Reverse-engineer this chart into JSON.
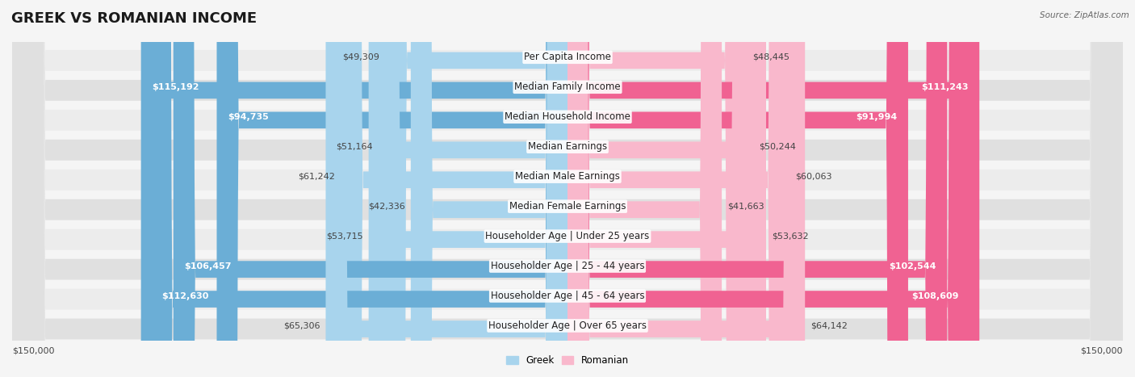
{
  "title": "GREEK VS ROMANIAN INCOME",
  "source": "Source: ZipAtlas.com",
  "categories": [
    "Per Capita Income",
    "Median Family Income",
    "Median Household Income",
    "Median Earnings",
    "Median Male Earnings",
    "Median Female Earnings",
    "Householder Age | Under 25 years",
    "Householder Age | 25 - 44 years",
    "Householder Age | 45 - 64 years",
    "Householder Age | Over 65 years"
  ],
  "greek_values": [
    49309,
    115192,
    94735,
    51164,
    61242,
    42336,
    53715,
    106457,
    112630,
    65306
  ],
  "romanian_values": [
    48445,
    111243,
    91994,
    50244,
    60063,
    41663,
    53632,
    102544,
    108609,
    64142
  ],
  "max_value": 150000,
  "greek_color_light": "#A8D4ED",
  "greek_color_dark": "#6BAED6",
  "romanian_color_light": "#F9B8CC",
  "romanian_color_dark": "#F06292",
  "row_bg_even": "#ececec",
  "row_bg_odd": "#e0e0e0",
  "background_color": "#f5f5f5",
  "title_fontsize": 13,
  "label_fontsize": 8.5,
  "value_fontsize": 8
}
